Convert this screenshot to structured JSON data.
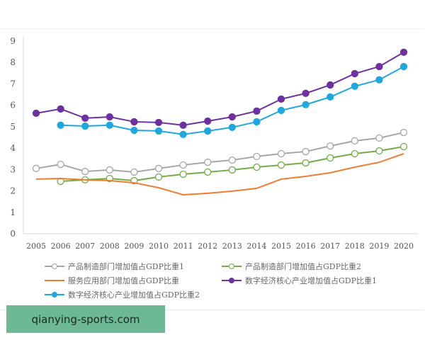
{
  "chart_data": {
    "type": "line",
    "title": "",
    "xlabel": "",
    "ylabel": "",
    "ylim": [
      0,
      9
    ],
    "yticks": [
      "0",
      "1",
      "2",
      "3",
      "4",
      "5",
      "6",
      "7",
      "8",
      "9"
    ],
    "grid": false,
    "legend_position": "bottom",
    "categories": [
      "2005",
      "2006",
      "2007",
      "2008",
      "2009",
      "2010",
      "2011",
      "2012",
      "2013",
      "2014",
      "2015",
      "2016",
      "2017",
      "2018",
      "2019",
      "2020"
    ],
    "series": [
      {
        "name": "产品制造部门增加值占GDP比重1",
        "color": "#a6a6a6",
        "marker": "open-circle",
        "values": [
          3.05,
          3.24,
          2.91,
          2.98,
          2.88,
          3.05,
          3.21,
          3.34,
          3.44,
          3.61,
          3.74,
          3.84,
          4.1,
          4.34,
          4.47,
          4.73
        ]
      },
      {
        "name": "产品制造部门增加值占GDP比重2",
        "color": "#70ad47",
        "marker": "open-circle",
        "values": [
          null,
          2.45,
          2.52,
          2.58,
          2.48,
          2.65,
          2.78,
          2.88,
          2.98,
          3.11,
          3.21,
          3.31,
          3.54,
          3.74,
          3.87,
          4.07
        ]
      },
      {
        "name": "服务应用部门增加值占GDP比重",
        "color": "#ed7d31",
        "marker": "none",
        "values": [
          2.55,
          2.58,
          2.52,
          2.48,
          2.38,
          2.15,
          1.82,
          1.89,
          1.99,
          2.12,
          2.55,
          2.68,
          2.85,
          3.11,
          3.34,
          3.74
        ]
      },
      {
        "name": "数字经济核心产业增加值占GDP比重1",
        "color": "#7030a0",
        "marker": "filled-circle",
        "values": [
          5.63,
          5.83,
          5.4,
          5.46,
          5.23,
          5.2,
          5.07,
          5.26,
          5.46,
          5.73,
          6.29,
          6.56,
          6.95,
          7.48,
          7.81,
          8.48
        ]
      },
      {
        "name": "数字经济核心产业增加值占GDP比重2",
        "color": "#1fa7e0",
        "marker": "filled-circle",
        "values": [
          null,
          5.07,
          5.03,
          5.07,
          4.83,
          4.8,
          4.64,
          4.8,
          4.97,
          5.23,
          5.76,
          6.03,
          6.39,
          6.89,
          7.19,
          7.81
        ]
      }
    ]
  },
  "watermark": "qianying-sports.com"
}
